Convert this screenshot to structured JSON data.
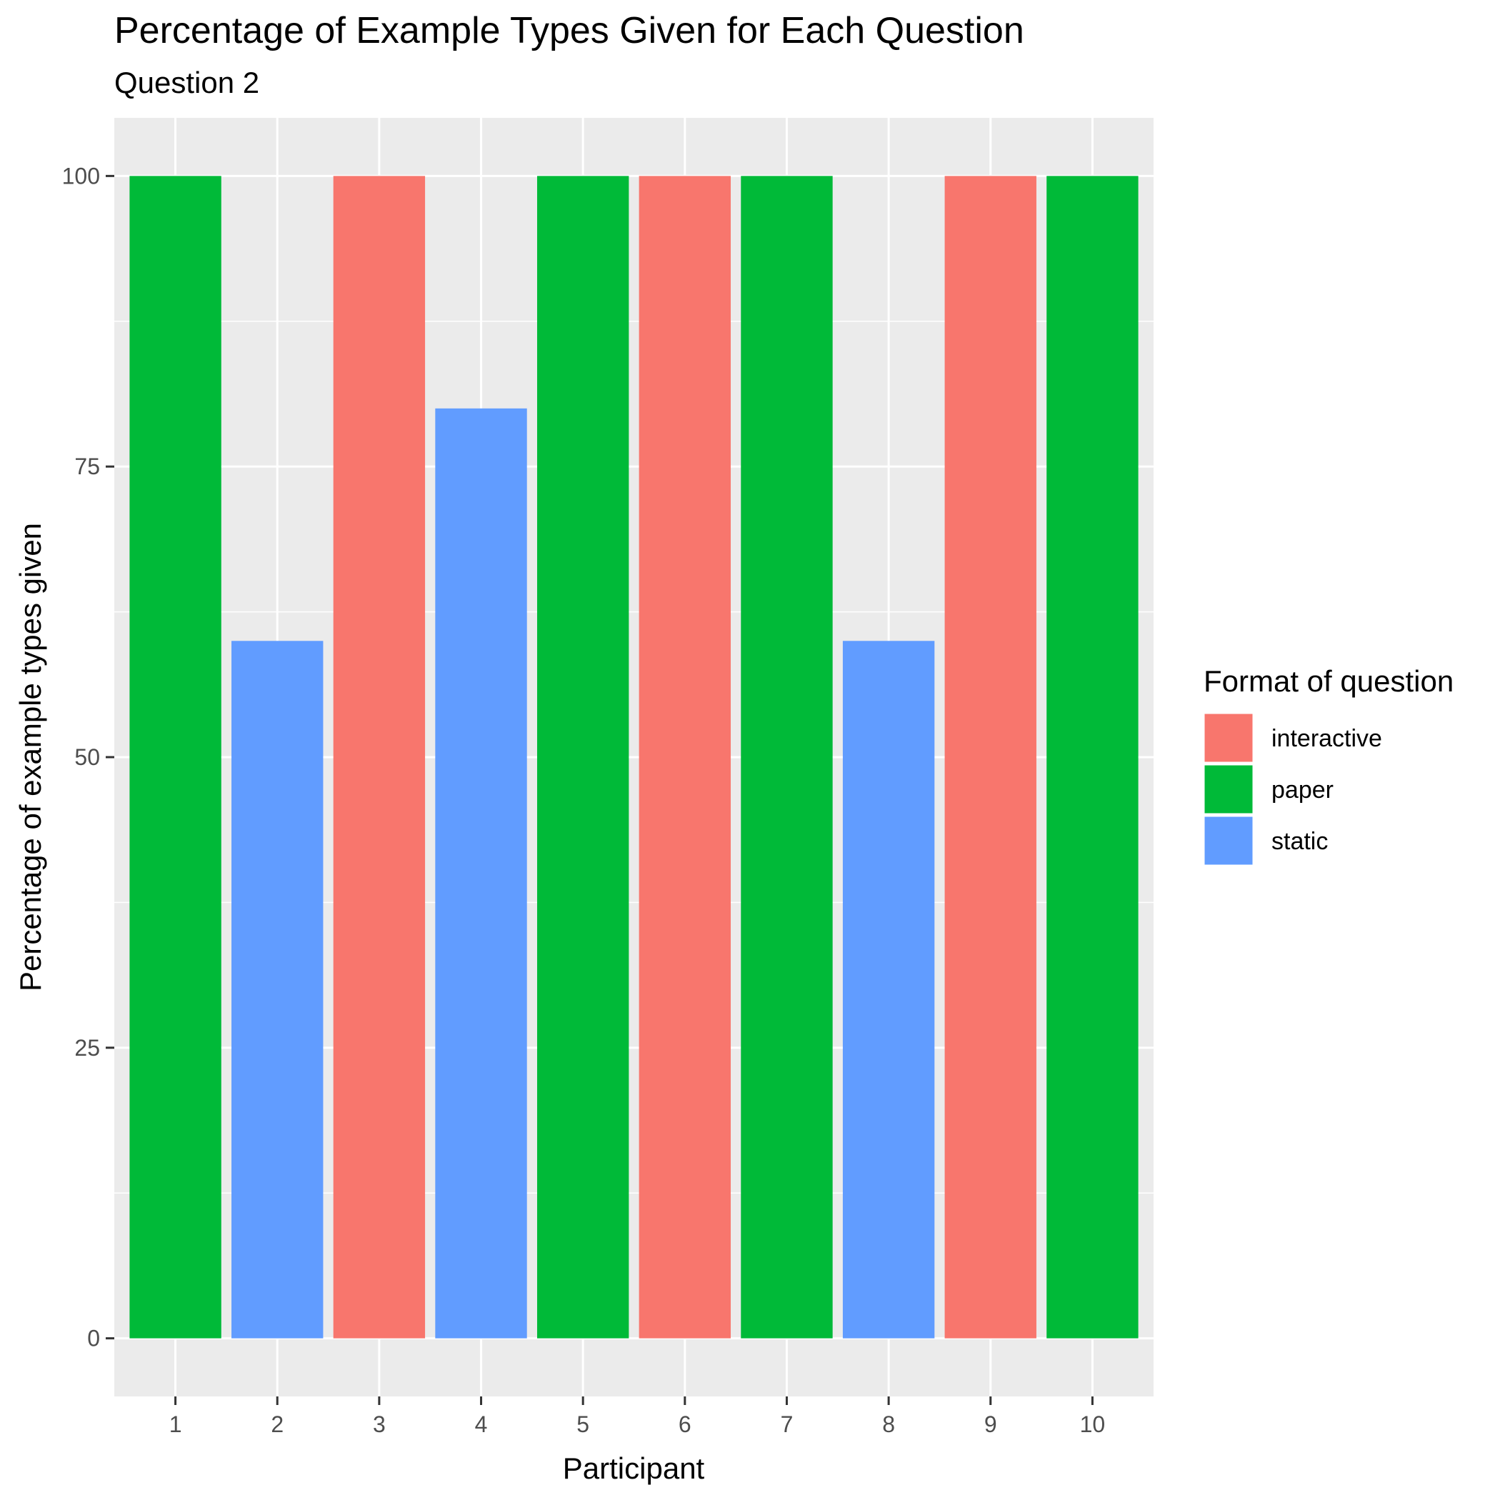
{
  "chart_data": {
    "type": "bar",
    "title": "Percentage of Example Types Given for Each Question",
    "subtitle": "Question 2",
    "xlabel": "Participant",
    "ylabel": "Percentage of example types given",
    "categories": [
      "1",
      "2",
      "3",
      "4",
      "5",
      "6",
      "7",
      "8",
      "9",
      "10"
    ],
    "values": [
      100,
      60,
      100,
      80,
      100,
      100,
      100,
      60,
      100,
      100
    ],
    "formats": [
      "paper",
      "static",
      "interactive",
      "static",
      "paper",
      "interactive",
      "paper",
      "static",
      "interactive",
      "paper"
    ],
    "ylim": [
      -5,
      105
    ],
    "yticks": [
      0,
      25,
      50,
      75,
      100
    ],
    "yticks_labels": [
      "0",
      "25",
      "50",
      "75",
      "100"
    ],
    "grid": true,
    "legend": {
      "title": "Format of question",
      "placement": "right",
      "entries": [
        {
          "label": "interactive",
          "color": "#F8766D"
        },
        {
          "label": "paper",
          "color": "#00BA38"
        },
        {
          "label": "static",
          "color": "#619CFF"
        }
      ]
    },
    "panel_background": "#EBEBEB",
    "grid_color": "#FFFFFF"
  }
}
